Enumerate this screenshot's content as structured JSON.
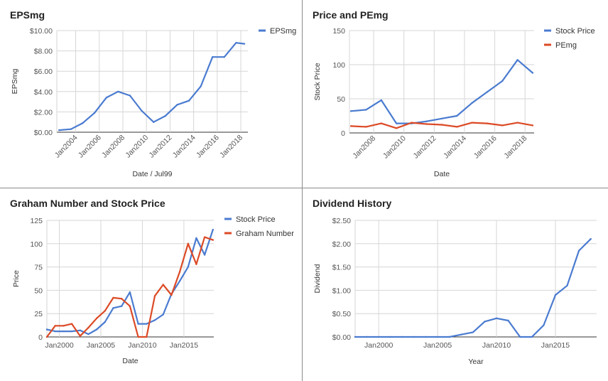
{
  "chart_data": [
    {
      "type": "line",
      "title": "EPSmg",
      "xlabel": "Date / Jul99",
      "ylabel": "EPSmg",
      "xlim": [
        2002.4,
        2018.6
      ],
      "ylim": [
        0,
        10
      ],
      "yticks": [
        0,
        2,
        4,
        6,
        8,
        10
      ],
      "ytick_labels": [
        "$0.00",
        "$2.00",
        "$4.00",
        "$6.00",
        "$8.00",
        "$10.00"
      ],
      "xticks": [
        2004,
        2006,
        2008,
        2010,
        2012,
        2014,
        2016,
        2018
      ],
      "xtick_labels": [
        "Jan2004",
        "Jan2006",
        "Jan2008",
        "Jan2010",
        "Jan2012",
        "Jan2014",
        "Jan2016",
        "Jan2018"
      ],
      "xtick_rotate": true,
      "legend": "top-right",
      "series": [
        {
          "name": "EPSmg",
          "color": "#4a7bd0",
          "x": [
            2002.6,
            2003.6,
            2004.6,
            2005.6,
            2006.6,
            2007.6,
            2008.6,
            2009.6,
            2010.6,
            2011.6,
            2012.6,
            2013.6,
            2014.6,
            2015.6,
            2016.6,
            2017.6,
            2018.3
          ],
          "y": [
            0.2,
            0.3,
            0.9,
            1.9,
            3.4,
            4.0,
            3.6,
            2.1,
            1.0,
            1.6,
            2.7,
            3.1,
            4.5,
            7.4,
            7.4,
            8.8,
            8.7
          ]
        }
      ]
    },
    {
      "type": "line",
      "title": "Price and PEmg",
      "xlabel": "Date",
      "ylabel": "Stock Price",
      "xlim": [
        2006.4,
        2018.6
      ],
      "ylim": [
        0,
        150
      ],
      "yticks": [
        0,
        50,
        100,
        150
      ],
      "ytick_labels": [
        "0",
        "50",
        "100",
        "150"
      ],
      "xticks": [
        2008,
        2010,
        2012,
        2014,
        2016,
        2018
      ],
      "xtick_labels": [
        "Jan2008",
        "Jan2010",
        "Jan2012",
        "Jan2014",
        "Jan2016",
        "Jan2018"
      ],
      "xtick_rotate": true,
      "legend": "top-right",
      "series": [
        {
          "name": "Stock Price",
          "color": "#4a7bd0",
          "x": [
            2006.5,
            2007.5,
            2008.5,
            2009.5,
            2010.5,
            2011.5,
            2012.5,
            2013.5,
            2014.5,
            2015.5,
            2016.5,
            2017.5,
            2018.5
          ],
          "y": [
            32,
            34,
            48,
            14,
            14,
            17,
            21,
            25,
            44,
            60,
            76,
            107,
            88
          ]
        },
        {
          "name": "PEmg",
          "color": "#dc4a26",
          "x": [
            2006.5,
            2007.5,
            2008.5,
            2009.5,
            2010.5,
            2011.5,
            2012.5,
            2013.5,
            2014.5,
            2015.5,
            2016.5,
            2017.5,
            2018.5
          ],
          "y": [
            10,
            9,
            14,
            7,
            15,
            13,
            12,
            9,
            15,
            14,
            11,
            15,
            11
          ]
        }
      ]
    },
    {
      "type": "line",
      "title": "Graham Number and Stock Price",
      "xlabel": "Date",
      "ylabel": "Price",
      "xlim": [
        1998.5,
        2018.6
      ],
      "ylim": [
        0,
        125
      ],
      "yticks": [
        0,
        25,
        50,
        75,
        100,
        125
      ],
      "ytick_labels": [
        "0",
        "25",
        "50",
        "75",
        "100",
        "125"
      ],
      "xticks": [
        2000,
        2005,
        2010,
        2015
      ],
      "xtick_labels": [
        "Jan2000",
        "Jan2005",
        "Jan2010",
        "Jan2015"
      ],
      "xtick_rotate": false,
      "legend": "top-right",
      "series": [
        {
          "name": "Stock Price",
          "color": "#4a7bd0",
          "x": [
            1998.5,
            1999.5,
            2000.5,
            2001.5,
            2002.5,
            2003.5,
            2004.5,
            2005.5,
            2006.5,
            2007.5,
            2008.5,
            2009.5,
            2010.5,
            2011.5,
            2012.5,
            2013.5,
            2014.5,
            2015.5,
            2016.5,
            2017.5,
            2018.5
          ],
          "y": [
            8,
            6,
            6,
            6,
            7,
            3,
            8,
            16,
            31,
            33,
            48,
            14,
            14,
            18,
            24,
            46,
            60,
            75,
            106,
            88,
            115
          ]
        },
        {
          "name": "Graham Number",
          "color": "#dc4a26",
          "x": [
            1998.5,
            1999.5,
            2000.5,
            2001.5,
            2002.5,
            2003.5,
            2004.5,
            2005.5,
            2006.5,
            2007.5,
            2008.5,
            2009.5,
            2010.5,
            2011.5,
            2012.5,
            2013.5,
            2014.5,
            2015.5,
            2016.5,
            2017.5,
            2018.5
          ],
          "y": [
            0,
            12,
            12,
            14,
            1,
            10,
            20,
            28,
            42,
            41,
            33,
            0,
            0,
            44,
            56,
            45,
            70,
            100,
            78,
            107,
            104
          ]
        }
      ]
    },
    {
      "type": "line",
      "title": "Dividend History",
      "xlabel": "Year",
      "ylabel": "Dividend",
      "xlim": [
        1998,
        2018.5
      ],
      "ylim": [
        0,
        2.5
      ],
      "yticks": [
        0,
        0.5,
        1.0,
        1.5,
        2.0,
        2.5
      ],
      "ytick_labels": [
        "$0.00",
        "$0.50",
        "$1.00",
        "$1.50",
        "$2.00",
        "$2.50"
      ],
      "xticks": [
        2000,
        2005,
        2010,
        2015
      ],
      "xtick_labels": [
        "Jan2000",
        "Jan2005",
        "Jan2010",
        "Jan2015"
      ],
      "xtick_rotate": false,
      "legend": "none",
      "series": [
        {
          "name": "",
          "color": "#4a7bd0",
          "x": [
            1998,
            1999,
            2000,
            2001,
            2002,
            2003,
            2004,
            2005,
            2006,
            2007,
            2008,
            2009,
            2010,
            2011,
            2012,
            2013,
            2014,
            2015,
            2016,
            2017,
            2018
          ],
          "y": [
            0,
            0,
            0,
            0,
            0,
            0,
            0,
            0,
            0,
            0.05,
            0.1,
            0.33,
            0.4,
            0.35,
            0,
            0,
            0.25,
            0.9,
            1.1,
            1.85,
            2.1
          ]
        }
      ]
    }
  ]
}
